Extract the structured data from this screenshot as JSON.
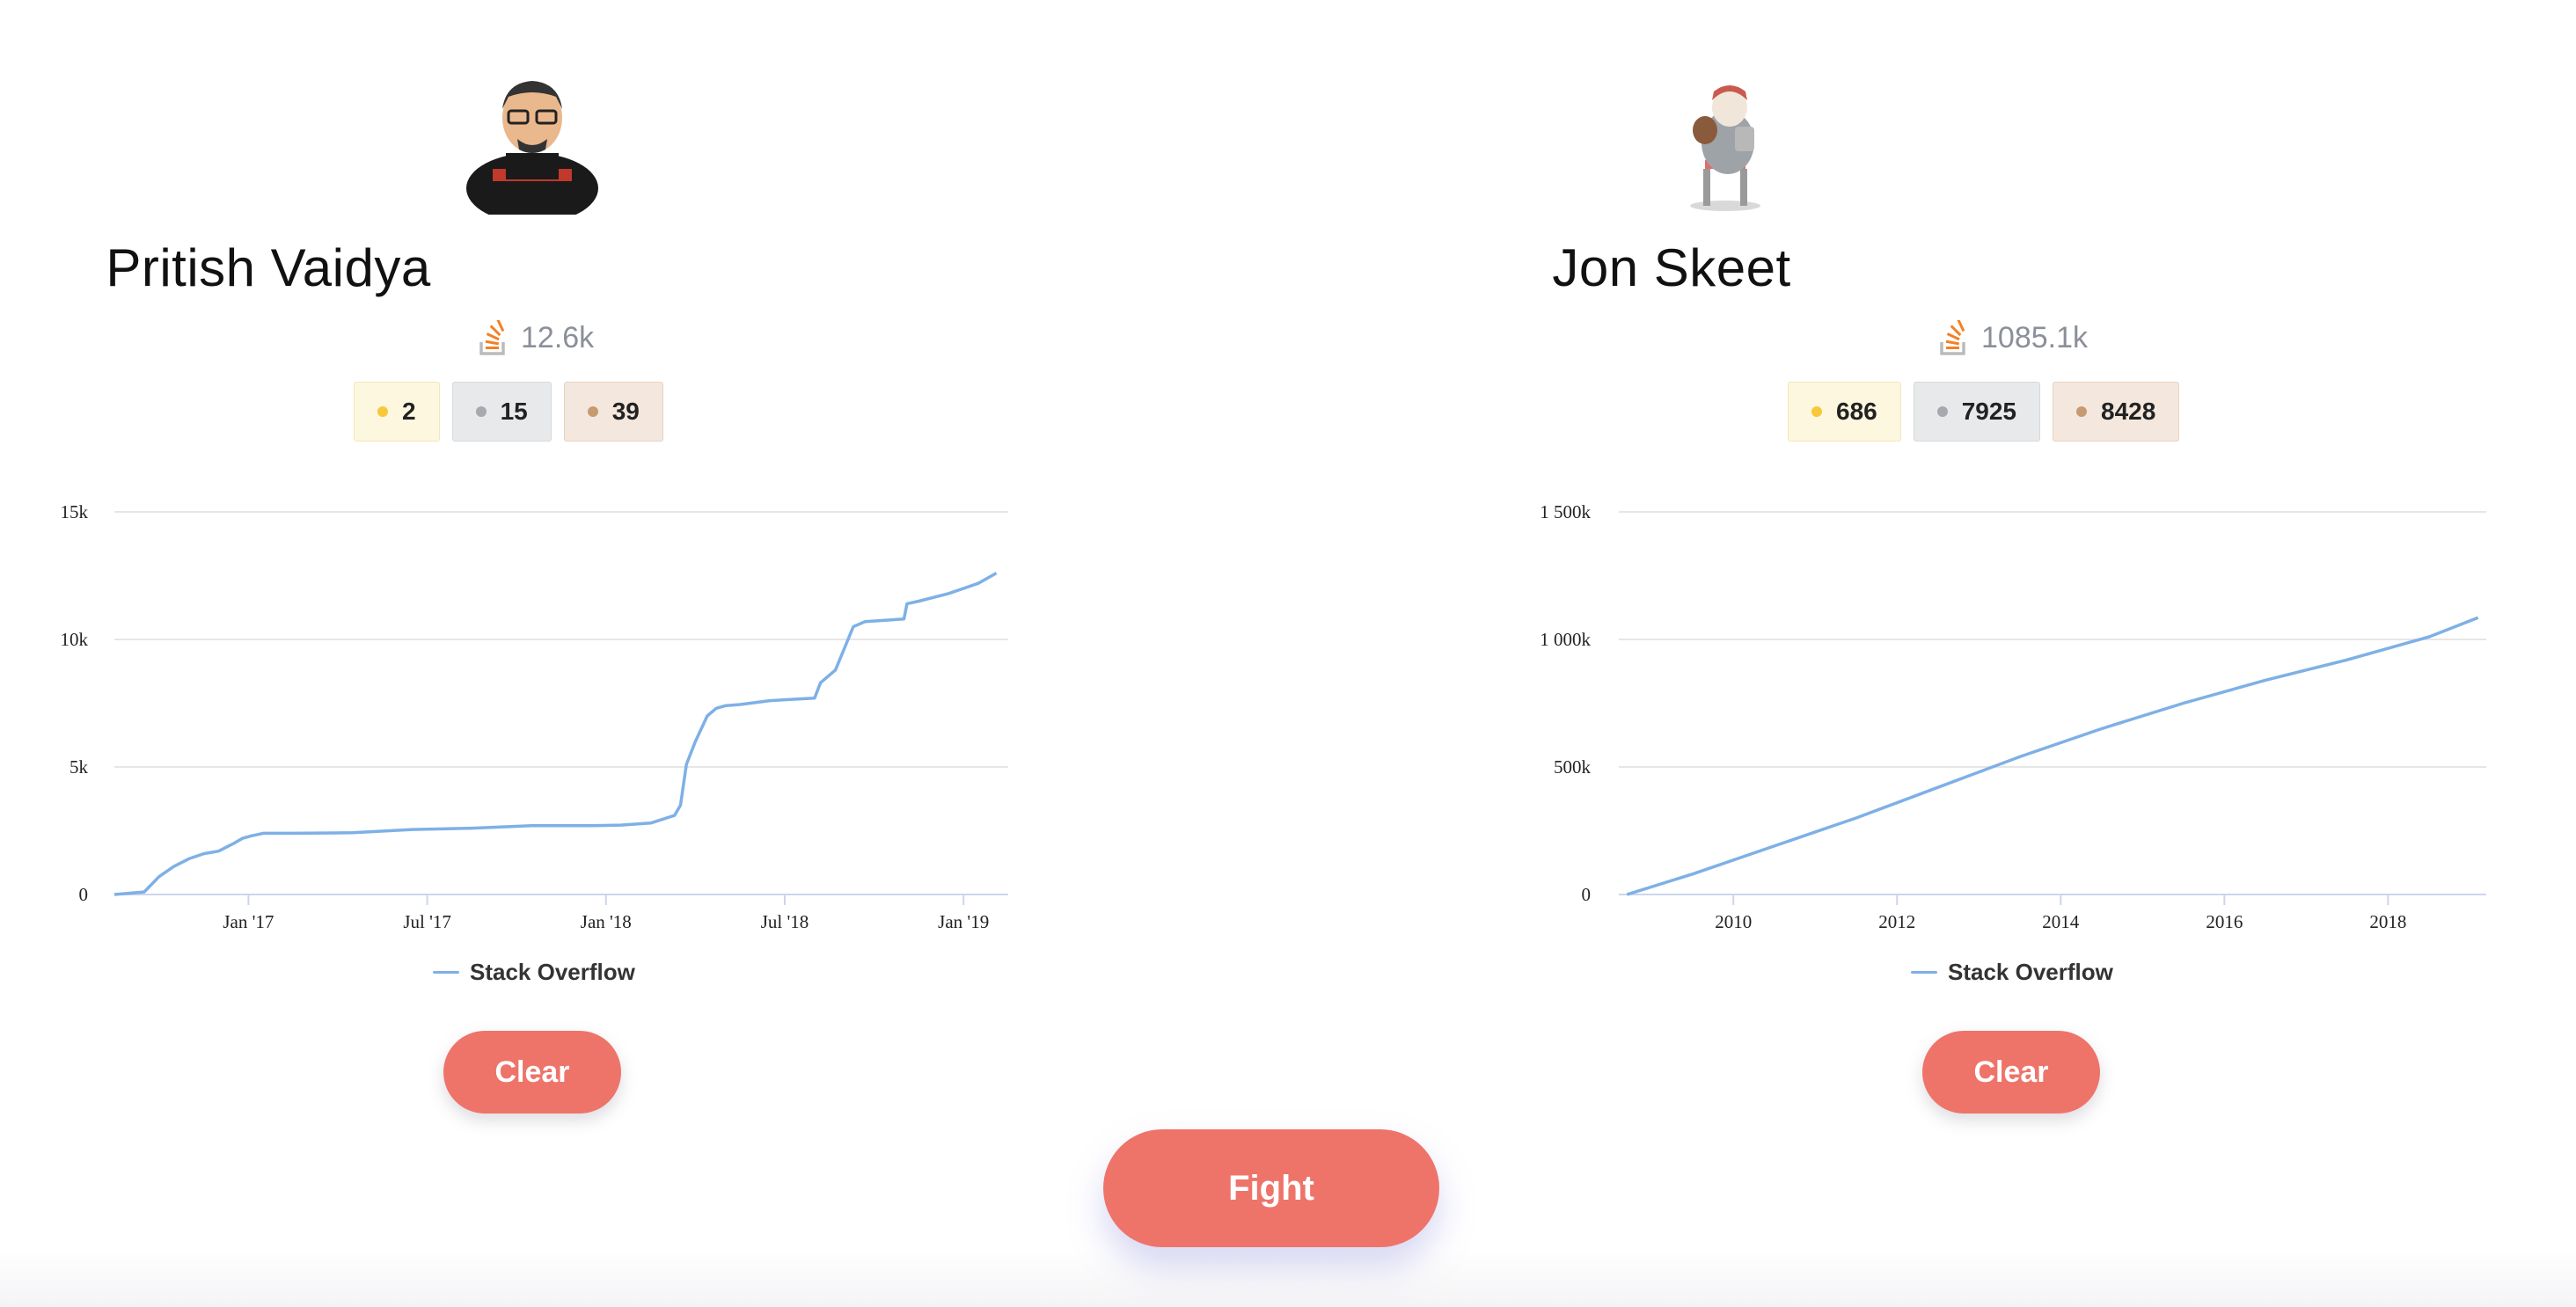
{
  "users": [
    {
      "name": "Pritish Vaidya",
      "reputation": "12.6k",
      "badges": {
        "gold": "2",
        "silver": "15",
        "bronze": "39"
      },
      "clear_label": "Clear",
      "avatar_icon": "cartoon-man-avatar"
    },
    {
      "name": "Jon Skeet",
      "reputation": "1085.1k",
      "badges": {
        "gold": "686",
        "silver": "7925",
        "bronze": "8428"
      },
      "clear_label": "Clear",
      "avatar_icon": "cartoon-coder-avatar"
    }
  ],
  "fight_label": "Fight",
  "colors": {
    "accent": "#ee746a",
    "line": "#7eb0e6",
    "so_orange": "#f48024"
  },
  "chart_data": [
    {
      "type": "line",
      "legend": "Stack Overflow",
      "y_ticks": [
        "0",
        "5k",
        "10k",
        "15k"
      ],
      "ylim": [
        0,
        15000
      ],
      "x_ticks": [
        "Jan '17",
        "Jul '17",
        "Jan '18",
        "Jul '18",
        "Jan '19"
      ],
      "x_tick_pos": [
        4.5,
        10.5,
        16.5,
        22.5,
        28.5
      ],
      "xlim": [
        0,
        30
      ],
      "series": [
        {
          "x": [
            0,
            1,
            1.5,
            2,
            2.5,
            3,
            3.5,
            4,
            4.3,
            4.6,
            5,
            6,
            8,
            10,
            12,
            14,
            16,
            17,
            18,
            18.8,
            19,
            19.2,
            19.5,
            19.9,
            20.2,
            20.5,
            21,
            22,
            23.5,
            23.7,
            24.2,
            24.8,
            25.2,
            26.5,
            26.6,
            27,
            28,
            28.5,
            29,
            29.6
          ],
          "y": [
            0,
            100,
            700,
            1100,
            1400,
            1600,
            1700,
            2000,
            2200,
            2300,
            2400,
            2400,
            2420,
            2550,
            2600,
            2700,
            2700,
            2720,
            2800,
            3100,
            3500,
            5100,
            6000,
            7000,
            7300,
            7400,
            7450,
            7600,
            7700,
            8300,
            8800,
            10500,
            10700,
            10800,
            11400,
            11500,
            11800,
            12000,
            12200,
            12600
          ]
        }
      ]
    },
    {
      "type": "line",
      "legend": "Stack Overflow",
      "y_ticks": [
        "0",
        "500k",
        "1 000k",
        "1 500k"
      ],
      "ylim": [
        0,
        1500000
      ],
      "x_ticks": [
        "2010",
        "2012",
        "2014",
        "2016",
        "2018"
      ],
      "x_tick_pos": [
        2010,
        2012,
        2014,
        2016,
        2018
      ],
      "xlim": [
        2008.6,
        2019.2
      ],
      "series": [
        {
          "x": [
            2008.7,
            2009.5,
            2010.5,
            2011.5,
            2012.5,
            2013.5,
            2014.5,
            2015.5,
            2016.5,
            2017.5,
            2018.5,
            2019.1
          ],
          "y": [
            0,
            80000,
            190000,
            300000,
            420000,
            540000,
            650000,
            750000,
            840000,
            920000,
            1010000,
            1085000
          ]
        }
      ]
    }
  ]
}
